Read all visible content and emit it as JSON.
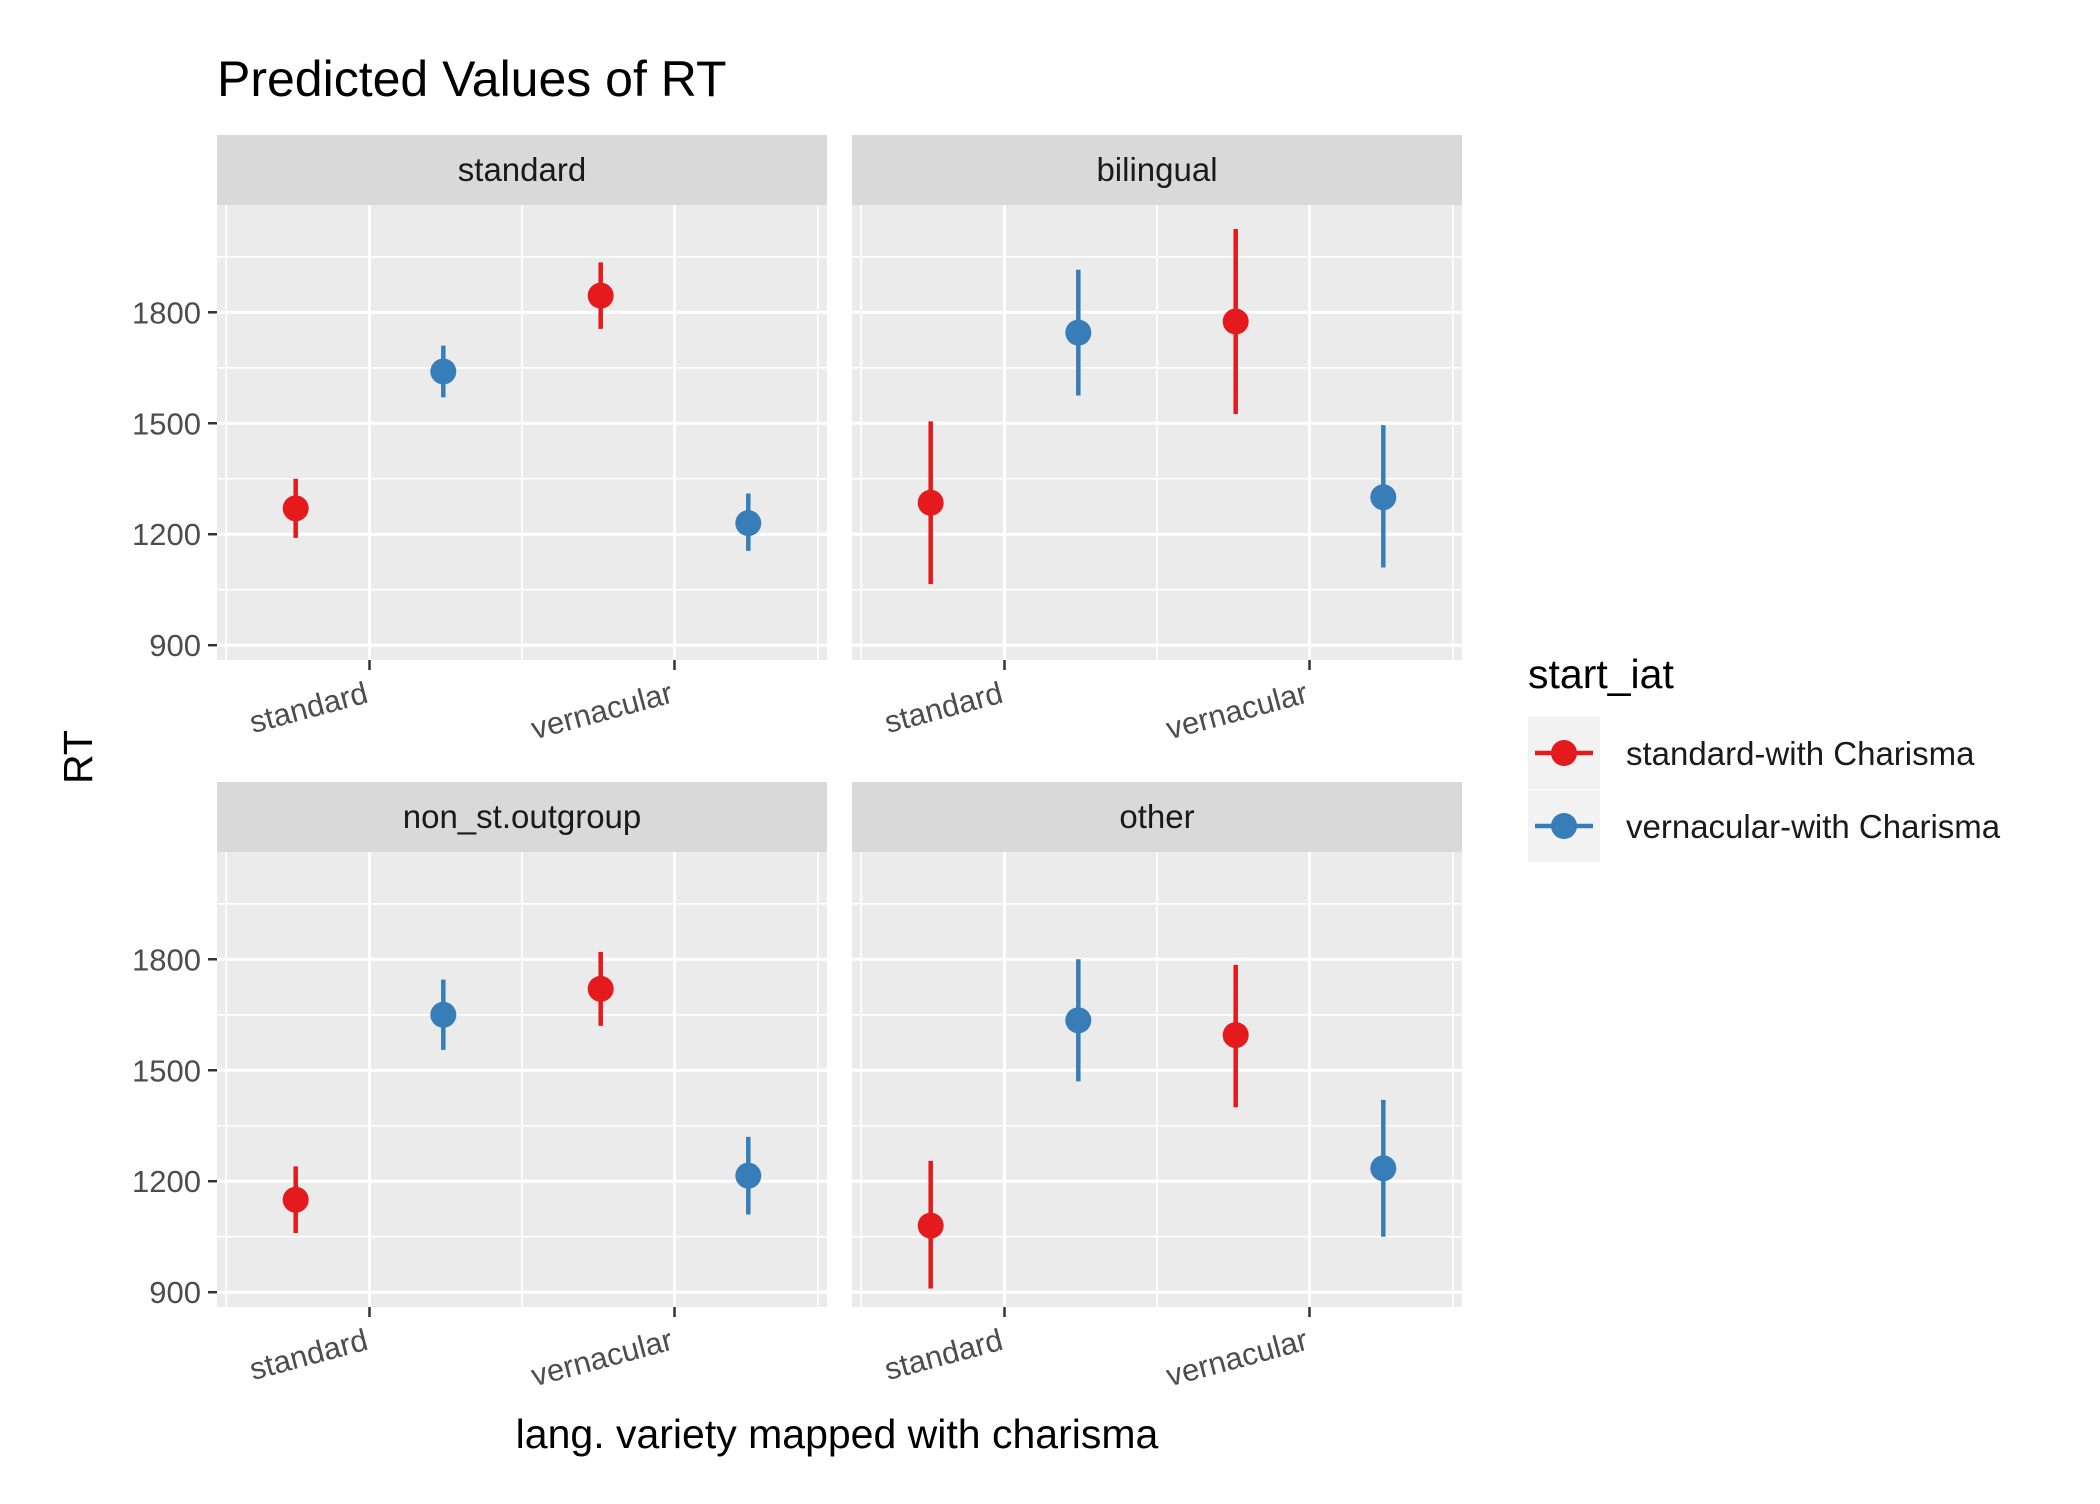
{
  "chart_data": {
    "type": "scatter",
    "title": "Predicted Values of RT",
    "xlabel": "lang. variety mapped with charisma",
    "ylabel": "RT",
    "categories": [
      "standard",
      "vernacular"
    ],
    "y_ticks": [
      900,
      1200,
      1500,
      1800
    ],
    "ylim": [
      860,
      2090
    ],
    "grid": true,
    "legend": {
      "title": "start_iat",
      "position": "right",
      "entries": [
        {
          "label": "standard-with Charisma",
          "color": "#E41A1C"
        },
        {
          "label": "vernacular-with Charisma",
          "color": "#377EB8"
        }
      ]
    },
    "panels": [
      {
        "label": "standard",
        "series": [
          {
            "name": "standard-with Charisma",
            "color": "#E41A1C",
            "points": [
              {
                "x": "standard",
                "y": 1270,
                "lower": 1190,
                "upper": 1350
              },
              {
                "x": "vernacular",
                "y": 1845,
                "lower": 1755,
                "upper": 1935
              }
            ]
          },
          {
            "name": "vernacular-with Charisma",
            "color": "#377EB8",
            "points": [
              {
                "x": "standard",
                "y": 1640,
                "lower": 1570,
                "upper": 1710
              },
              {
                "x": "vernacular",
                "y": 1230,
                "lower": 1155,
                "upper": 1310
              }
            ]
          }
        ]
      },
      {
        "label": "bilingual",
        "series": [
          {
            "name": "standard-with Charisma",
            "color": "#E41A1C",
            "points": [
              {
                "x": "standard",
                "y": 1285,
                "lower": 1065,
                "upper": 1505
              },
              {
                "x": "vernacular",
                "y": 1775,
                "lower": 1525,
                "upper": 2025
              }
            ]
          },
          {
            "name": "vernacular-with Charisma",
            "color": "#377EB8",
            "points": [
              {
                "x": "standard",
                "y": 1745,
                "lower": 1575,
                "upper": 1915
              },
              {
                "x": "vernacular",
                "y": 1300,
                "lower": 1110,
                "upper": 1495
              }
            ]
          }
        ]
      },
      {
        "label": "non_st.outgroup",
        "series": [
          {
            "name": "standard-with Charisma",
            "color": "#E41A1C",
            "points": [
              {
                "x": "standard",
                "y": 1150,
                "lower": 1060,
                "upper": 1240
              },
              {
                "x": "vernacular",
                "y": 1720,
                "lower": 1620,
                "upper": 1820
              }
            ]
          },
          {
            "name": "vernacular-with Charisma",
            "color": "#377EB8",
            "points": [
              {
                "x": "standard",
                "y": 1650,
                "lower": 1555,
                "upper": 1745
              },
              {
                "x": "vernacular",
                "y": 1215,
                "lower": 1110,
                "upper": 1320
              }
            ]
          }
        ]
      },
      {
        "label": "other",
        "series": [
          {
            "name": "standard-with Charisma",
            "color": "#E41A1C",
            "points": [
              {
                "x": "standard",
                "y": 1080,
                "lower": 910,
                "upper": 1255
              },
              {
                "x": "vernacular",
                "y": 1595,
                "lower": 1400,
                "upper": 1785
              }
            ]
          },
          {
            "name": "vernacular-with Charisma",
            "color": "#377EB8",
            "points": [
              {
                "x": "standard",
                "y": 1635,
                "lower": 1470,
                "upper": 1800
              },
              {
                "x": "vernacular",
                "y": 1235,
                "lower": 1050,
                "upper": 1420
              }
            ]
          }
        ]
      }
    ]
  }
}
